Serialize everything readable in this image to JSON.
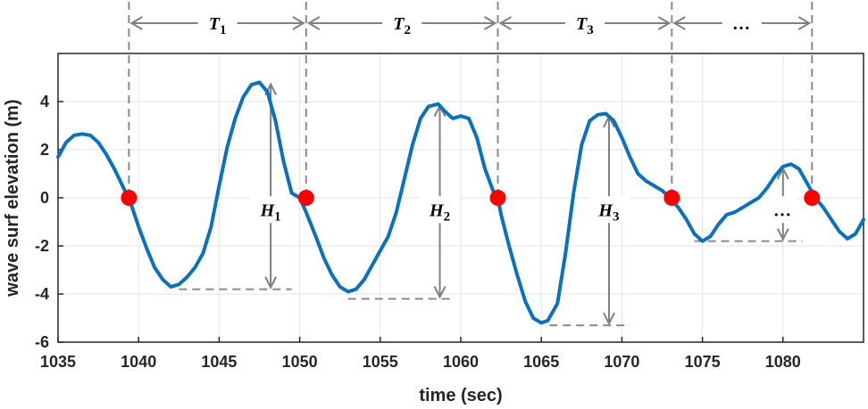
{
  "chart_data": {
    "type": "line",
    "xlabel": "time (sec)",
    "ylabel": "wave surf elevation (m)",
    "xlim": [
      1035,
      1085
    ],
    "ylim": [
      -6,
      6
    ],
    "xticks": [
      1035,
      1040,
      1045,
      1050,
      1055,
      1060,
      1065,
      1070,
      1075,
      1080
    ],
    "yticks": [
      -6,
      -4,
      -2,
      0,
      2,
      4
    ],
    "grid": true,
    "colors": {
      "line": "#0a72bd",
      "zero_crossing": "#ff0000",
      "annotation": "#808080"
    },
    "series": [
      {
        "x": [
          1035,
          1035.5,
          1036,
          1036.5,
          1037,
          1037.5,
          1038,
          1038.5,
          1039,
          1039.5,
          1040,
          1040.5,
          1041,
          1041.5,
          1042,
          1042.5,
          1043,
          1043.5,
          1044,
          1044.5,
          1045,
          1045.5,
          1046,
          1046.5,
          1047,
          1047.5,
          1048,
          1048.5,
          1049,
          1049.5,
          1050,
          1050.4,
          1051,
          1051.5,
          1052,
          1052.5,
          1053,
          1053.5,
          1054,
          1054.5,
          1055,
          1055.5,
          1056,
          1056.5,
          1057,
          1057.5,
          1058,
          1058.6,
          1059,
          1059.5,
          1060,
          1060.5,
          1061,
          1061.5,
          1062,
          1062.3,
          1062.5,
          1063,
          1063.5,
          1064,
          1064.5,
          1065,
          1065.4,
          1066,
          1066.5,
          1067,
          1067.5,
          1068,
          1068.5,
          1069,
          1069.5,
          1070,
          1070.5,
          1071,
          1071.5,
          1072,
          1072.5,
          1073,
          1073.5,
          1074,
          1074.5,
          1075,
          1075.5,
          1076,
          1076.5,
          1077,
          1077.5,
          1078,
          1078.5,
          1079,
          1079.5,
          1080,
          1080.5,
          1081,
          1081.5,
          1082,
          1082.5,
          1083,
          1083.5,
          1084,
          1084.5,
          1085
        ],
        "y": [
          1.7,
          2.3,
          2.6,
          2.65,
          2.6,
          2.3,
          1.8,
          1.2,
          0.5,
          -0.2,
          -1.2,
          -2.1,
          -2.9,
          -3.4,
          -3.7,
          -3.6,
          -3.3,
          -2.9,
          -2.3,
          -1.2,
          0.5,
          2.1,
          3.3,
          4.2,
          4.7,
          4.8,
          4.4,
          3.2,
          1.5,
          0.2,
          0.0,
          -0.6,
          -1.6,
          -2.5,
          -3.2,
          -3.7,
          -3.9,
          -3.8,
          -3.4,
          -2.8,
          -2.2,
          -1.6,
          -0.6,
          0.8,
          2.2,
          3.3,
          3.8,
          3.9,
          3.6,
          3.3,
          3.4,
          3.3,
          2.5,
          1.2,
          0.3,
          0.0,
          -0.7,
          -2.0,
          -3.2,
          -4.3,
          -5.0,
          -5.2,
          -5.1,
          -4.4,
          -2.3,
          0.2,
          2.2,
          3.2,
          3.45,
          3.5,
          3.2,
          2.5,
          1.7,
          1.0,
          0.7,
          0.5,
          0.3,
          0.0,
          -0.4,
          -0.9,
          -1.5,
          -1.8,
          -1.6,
          -1.1,
          -0.7,
          -0.6,
          -0.4,
          -0.2,
          0.0,
          0.4,
          0.9,
          1.3,
          1.4,
          1.2,
          0.6,
          0.0,
          -0.4,
          -0.9,
          -1.4,
          -1.7,
          -1.5,
          -0.9
        ]
      }
    ],
    "zero_crossings": [
      1039.4,
      1050.4,
      1062.3,
      1073.1,
      1081.8
    ],
    "period_labels": [
      "T",
      "T",
      "T",
      "…"
    ],
    "period_subscripts": [
      "1",
      "2",
      "3",
      ""
    ],
    "height_labels": [
      {
        "x": 1048.2,
        "crest": 4.8,
        "trough": -3.8,
        "main": "H",
        "sub": "1"
      },
      {
        "x": 1058.7,
        "crest": 3.9,
        "trough": -4.2,
        "main": "H",
        "sub": "2"
      },
      {
        "x": 1069.2,
        "crest": 3.45,
        "trough": -5.3,
        "main": "H",
        "sub": "3"
      },
      {
        "x": 1080.0,
        "crest": 1.3,
        "trough": -1.8,
        "main": "…",
        "sub": ""
      }
    ],
    "trough_marks": [
      {
        "x_start": 1042.5,
        "x_end": 1049.5,
        "y": -3.8
      },
      {
        "x_start": 1053.0,
        "x_end": 1059.5,
        "y": -4.2
      },
      {
        "x_start": 1065.5,
        "x_end": 1070.5,
        "y": -5.3
      },
      {
        "x_start": 1074.5,
        "x_end": 1081.2,
        "y": -1.8
      }
    ]
  }
}
